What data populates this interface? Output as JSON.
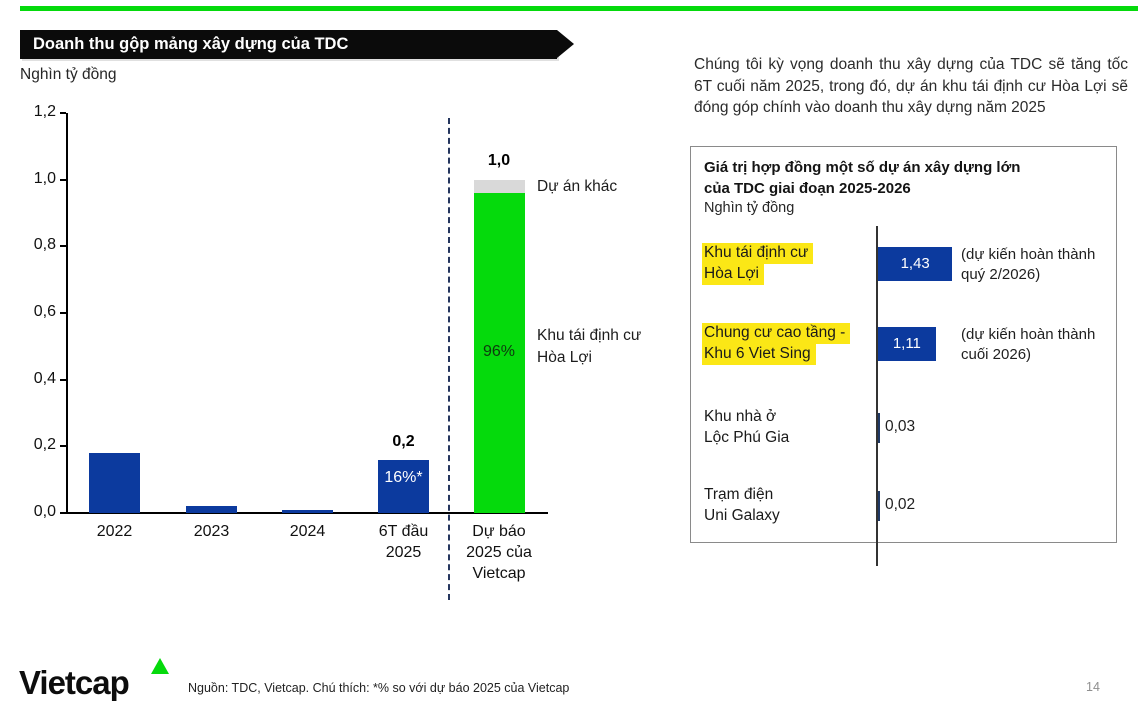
{
  "colors": {
    "accent_green": "#05DA0C",
    "bar_blue": "#0C3A9E",
    "sliver_navy": "#1F3864",
    "segment_gray": "#D9D9D9",
    "highlight_yellow": "#FBE716",
    "divider_navy": "#25365E"
  },
  "header": {
    "banner_title": "Doanh thu gộp mảng xây dựng của TDC",
    "unit_label": "Nghìn tỷ đồng"
  },
  "chart_data": [
    {
      "type": "bar",
      "title": "Doanh thu gộp mảng xây dựng của TDC",
      "ylabel": "Nghìn tỷ đồng",
      "ylim": [
        0,
        1.2
      ],
      "grid": false,
      "ytick_labels": [
        "0,0",
        "0,2",
        "0,4",
        "0,6",
        "0,8",
        "1,0",
        "1,2"
      ],
      "categories": [
        "2022",
        "2023",
        "2024",
        "6T đầu 2025",
        "Dự báo 2025 của Vietcap"
      ],
      "category_label_lines": [
        [
          "2022"
        ],
        [
          "2023"
        ],
        [
          "2024"
        ],
        [
          "6T đầu",
          "2025"
        ],
        [
          "Dự báo",
          "2025 của",
          "Vietcap"
        ]
      ],
      "series": [
        {
          "color_key": "bar_blue",
          "values": [
            0.18,
            0.02,
            0.01,
            0.16,
            null
          ]
        },
        {
          "color_key": "accent_green",
          "segment": "Khu tái định cư Hòa Lợi",
          "values": [
            null,
            null,
            null,
            null,
            0.96
          ]
        },
        {
          "color_key": "segment_gray",
          "segment": "Dự án khác",
          "values": [
            null,
            null,
            null,
            null,
            0.04
          ]
        }
      ],
      "annotations": {
        "h1_total_label": "0,2",
        "h1_pct_label": "16%*",
        "forecast_total_label": "1,0",
        "forecast_green_pct_label": "96%",
        "gray_segment_label": "Dự án khác",
        "green_segment_label_lines": [
          "Khu tái định cư",
          "Hòa Lợi"
        ]
      }
    },
    {
      "type": "bar",
      "orientation": "horizontal",
      "title": "Giá trị hợp đồng một số dự án xây dựng lớn của TDC giai đoạn 2025-2026",
      "unit": "Nghìn tỷ đồng",
      "rows": [
        {
          "label": "Khu tái định cư Hòa Lợi",
          "label_lines": [
            "Khu tái định cư",
            "Hòa Lợi"
          ],
          "highlighted": true,
          "value": 1.43,
          "value_label": "1,43",
          "note_lines": [
            "(dự kiến hoàn thành",
            "quý 2/2026)"
          ]
        },
        {
          "label": "Chung cư cao tầng - Khu 6 Viet Sing",
          "label_lines": [
            "Chung cư cao tầng -",
            "Khu 6 Viet Sing"
          ],
          "highlighted": true,
          "value": 1.11,
          "value_label": "1,11",
          "note_lines": [
            "(dự kiến hoàn thành",
            "cuối 2026)"
          ]
        },
        {
          "label": "Khu nhà ở Lộc Phú Gia",
          "label_lines": [
            "Khu nhà ở",
            "Lộc Phú Gia"
          ],
          "highlighted": false,
          "value": 0.03,
          "value_label": "0,03",
          "note_lines": []
        },
        {
          "label": "Trạm điện Uni Galaxy",
          "label_lines": [
            "Trạm điện",
            "Uni Galaxy"
          ],
          "highlighted": false,
          "value": 0.02,
          "value_label": "0,02",
          "note_lines": []
        }
      ]
    }
  ],
  "right_panel": {
    "paragraph": "Chúng tôi kỳ vọng doanh thu xây dựng của TDC sẽ tăng tốc 6T cuối năm 2025, trong đó, dự án khu tái định cư Hòa Lợi sẽ đóng góp chính vào doanh thu xây dựng năm 2025",
    "box": {
      "title_lines": [
        "Giá trị hợp đồng một số dự án xây dựng lớn",
        "của TDC giai đoạn 2025-2026"
      ],
      "unit_label": "Nghìn tỷ đồng"
    }
  },
  "footer": {
    "logo_text": "Vietcap",
    "source_note": "Nguồn: TDC, Vietcap. Chú thích: *% so với dự báo 2025 của Vietcap",
    "page_number": "14"
  }
}
